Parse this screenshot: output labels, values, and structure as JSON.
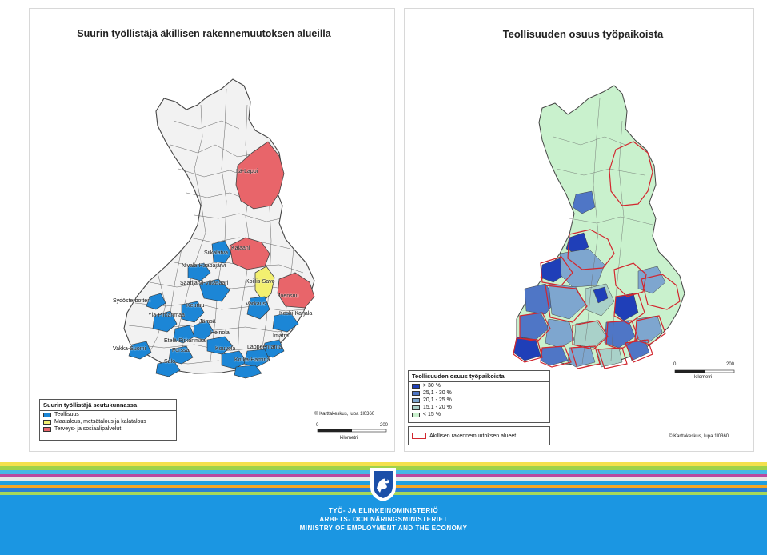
{
  "left_map": {
    "title": "Suurin työllistäjä äkillisen rakennemuutoksen alueilla",
    "colors": {
      "teollisuus": "#1c86d6",
      "maatalous": "#f3f070",
      "terveys": "#e8656a",
      "base": "#f0f0f0",
      "border": "#444444"
    },
    "region_labels": [
      "Itä-Lappi",
      "Kajaani",
      "Siikalatva",
      "Nivala-Haapajärvi",
      "Koillis-Savo",
      "Saarijärvi-Viitasaari",
      "Joensuu",
      "Sydösterbotten",
      "Keuruu",
      "Varkaus",
      "Ylä-Pirkanmaa",
      "Jämsä",
      "Keski-Karjala",
      "Heinola",
      "Imatra",
      "Etelä-Pirkanmaa",
      "Vakka-Suomi",
      "Forssa",
      "Kouvola",
      "Lappeenranta",
      "Kotka-Hamina",
      "Salo"
    ],
    "legend": {
      "title": "Suurin työllistäjä seutukunnassa",
      "items": [
        {
          "label": "Teollisuus",
          "color": "#1c86d6"
        },
        {
          "label": "Maatalous, metsätalous ja kalatalous",
          "color": "#f3f070"
        },
        {
          "label": "Terveys- ja sosiaalipalvelut",
          "color": "#e8656a"
        }
      ]
    },
    "credit": "© Karttakeskus, lupa 1l0360",
    "scale": {
      "start": "0",
      "end": "200",
      "unit": "kilometri"
    }
  },
  "right_map": {
    "title": "Teollisuuden osuus työpaikoista",
    "legend": {
      "title": "Teollisuuden osuus työpaikoista",
      "items": [
        {
          "label": "> 30 %",
          "color": "#1f3fb8"
        },
        {
          "label": "25,1 - 30 %",
          "color": "#4f76c6"
        },
        {
          "label": "20,1 - 25 %",
          "color": "#7ea6cf"
        },
        {
          "label": "15,1 - 20 %",
          "color": "#a9d1c9"
        },
        {
          "label": "< 15 %",
          "color": "#c9f1cd"
        }
      ],
      "outline_label": "Äkillisen rakennemuutoksen alueet",
      "outline_color": "#d2262e"
    },
    "credit": "© Karttakeskus, lupa 1l0360",
    "scale": {
      "start": "0",
      "end": "200",
      "unit": "kilometri"
    }
  },
  "ministry": {
    "line1": "TYÖ- JA ELINKEINOMINISTERIÖ",
    "line2": "ARBETS- OCH NÄRINGSMINISTERIET",
    "line3": "MINISTRY OF EMPLOYMENT AND THE ECONOMY"
  },
  "banner_colors": [
    "#f4e04d",
    "#9fd24a",
    "#46b8e6",
    "#b84aa0",
    "#e7e7e7",
    "#1f9fe0",
    "#f5a623",
    "#2d7fd0",
    "#a6d85a",
    "#1b96e2"
  ]
}
